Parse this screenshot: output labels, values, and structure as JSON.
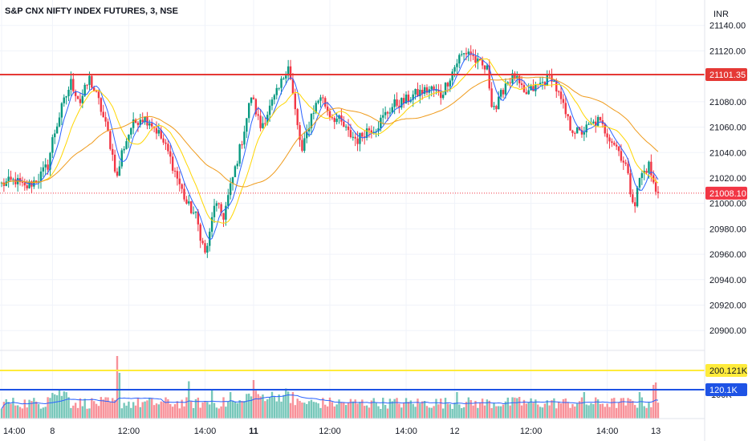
{
  "header": {
    "symbol_title": "S&P CNX NIFTY INDEX FUTURES, 3, NSE",
    "currency": "INR"
  },
  "chart_data": {
    "type": "candlestick",
    "price_axis": {
      "ylim": [
        20885,
        21160
      ],
      "ticks": [
        "21140.00",
        "21120.00",
        "21100.00",
        "21080.00",
        "21060.00",
        "21040.00",
        "21020.00",
        "21000.00",
        "20980.00",
        "20960.00",
        "20940.00",
        "20920.00",
        "20900.00"
      ],
      "tick_values": [
        21140,
        21120,
        21100,
        21080,
        21060,
        21040,
        21020,
        21000,
        20980,
        20960,
        20940,
        20920,
        20900
      ]
    },
    "time_axis": {
      "labels": [
        {
          "text": "14:00",
          "bar": 0,
          "bold": false
        },
        {
          "text": "8",
          "bar": 22,
          "bold": false
        },
        {
          "text": "12:00",
          "bar": 55,
          "bold": false
        },
        {
          "text": "14:00",
          "bar": 88,
          "bold": false
        },
        {
          "text": "11",
          "bar": 109,
          "bold": true
        },
        {
          "text": "12:00",
          "bar": 142,
          "bold": false
        },
        {
          "text": "14:00",
          "bar": 175,
          "bold": false
        },
        {
          "text": "12",
          "bar": 196,
          "bold": false
        },
        {
          "text": "12:00",
          "bar": 229,
          "bold": false
        },
        {
          "text": "14:00",
          "bar": 262,
          "bold": false
        },
        {
          "text": "13",
          "bar": 283,
          "bold": false
        }
      ]
    },
    "horizontal_lines": [
      {
        "name": "resistance",
        "price": 21101.35,
        "label": "21101.35",
        "color": "#e53935"
      },
      {
        "name": "last-price",
        "price": 21008.1,
        "label": "21008.10",
        "color": "#f23645",
        "dotted": true
      }
    ],
    "volume_lines": [
      {
        "name": "volume-yellow-line",
        "value": 200121,
        "label": "200.121K",
        "color": "#ffeb3b"
      },
      {
        "name": "volume-blue-line",
        "value": 120100,
        "label": "120.1K",
        "color": "#1e53e5"
      },
      {
        "name": "volume-axis-tick",
        "value": 100000,
        "label": "100K"
      }
    ],
    "volume_range": [
      0,
      280000
    ],
    "price_anchors": [
      [
        0,
        21015
      ],
      [
        6,
        21018
      ],
      [
        10,
        21012
      ],
      [
        16,
        21020
      ],
      [
        20,
        21030
      ],
      [
        22,
        21050
      ],
      [
        26,
        21075
      ],
      [
        30,
        21095
      ],
      [
        34,
        21080
      ],
      [
        38,
        21098
      ],
      [
        42,
        21080
      ],
      [
        46,
        21055
      ],
      [
        50,
        21020
      ],
      [
        52,
        21040
      ],
      [
        56,
        21060
      ],
      [
        60,
        21068
      ],
      [
        64,
        21065
      ],
      [
        68,
        21055
      ],
      [
        72,
        21040
      ],
      [
        76,
        21020
      ],
      [
        80,
        21000
      ],
      [
        84,
        20990
      ],
      [
        86,
        20975
      ],
      [
        88,
        20960
      ],
      [
        90,
        20975
      ],
      [
        92,
        21000
      ],
      [
        96,
        20990
      ],
      [
        100,
        21020
      ],
      [
        104,
        21050
      ],
      [
        108,
        21085
      ],
      [
        112,
        21060
      ],
      [
        116,
        21075
      ],
      [
        120,
        21090
      ],
      [
        124,
        21110
      ],
      [
        126,
        21085
      ],
      [
        128,
        21060
      ],
      [
        130,
        21040
      ],
      [
        134,
        21070
      ],
      [
        138,
        21085
      ],
      [
        142,
        21070
      ],
      [
        146,
        21065
      ],
      [
        150,
        21055
      ],
      [
        154,
        21050
      ],
      [
        158,
        21058
      ],
      [
        162,
        21060
      ],
      [
        166,
        21070
      ],
      [
        170,
        21078
      ],
      [
        174,
        21080
      ],
      [
        178,
        21085
      ],
      [
        182,
        21088
      ],
      [
        186,
        21090
      ],
      [
        190,
        21085
      ],
      [
        194,
        21100
      ],
      [
        198,
        21115
      ],
      [
        202,
        21120
      ],
      [
        206,
        21110
      ],
      [
        210,
        21105
      ],
      [
        212,
        21080
      ],
      [
        214,
        21075
      ],
      [
        218,
        21095
      ],
      [
        222,
        21100
      ],
      [
        226,
        21085
      ],
      [
        230,
        21090
      ],
      [
        234,
        21095
      ],
      [
        238,
        21100
      ],
      [
        242,
        21080
      ],
      [
        246,
        21060
      ],
      [
        250,
        21055
      ],
      [
        254,
        21060
      ],
      [
        258,
        21065
      ],
      [
        262,
        21055
      ],
      [
        266,
        21045
      ],
      [
        270,
        21030
      ],
      [
        272,
        21010
      ],
      [
        274,
        21000
      ],
      [
        276,
        21020
      ],
      [
        280,
        21030
      ],
      [
        283,
        21008
      ]
    ],
    "volume_spikes": [
      [
        50,
        2.6
      ],
      [
        51,
        1.9
      ],
      [
        81,
        1.55
      ],
      [
        91,
        1.2
      ],
      [
        99,
        1.1
      ],
      [
        109,
        1.6
      ],
      [
        113,
        1.0
      ],
      [
        123,
        1.25
      ],
      [
        126,
        1.1
      ],
      [
        160,
        0.75
      ],
      [
        197,
        1.1
      ],
      [
        224,
        0.9
      ],
      [
        252,
        1.1
      ],
      [
        276,
        1.1
      ],
      [
        282,
        1.4
      ],
      [
        283,
        1.5
      ]
    ]
  }
}
